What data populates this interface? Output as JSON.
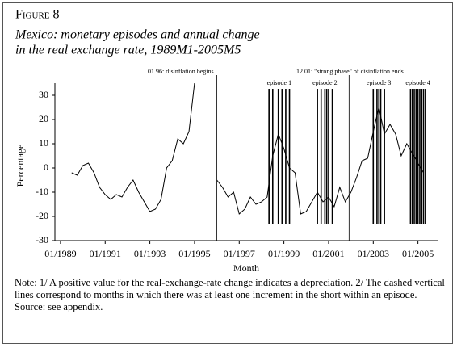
{
  "chart_data": {
    "type": "line",
    "title": "Figure 8",
    "subtitle": [
      "Mexico: monetary episodes and annual change",
      "in the real exchange rate, 1989M1-2005M5"
    ],
    "ylabel": "Percentage",
    "xlabel": "Month",
    "x": [
      "07/1989",
      "10/1989",
      "01/1990",
      "04/1990",
      "07/1990",
      "10/1990",
      "01/1991",
      "04/1991",
      "07/1991",
      "10/1991",
      "01/1992",
      "04/1992",
      "07/1992",
      "10/1992",
      "01/1993",
      "04/1993",
      "07/1993",
      "10/1993",
      "01/1994",
      "04/1994",
      "07/1994",
      "10/1994",
      "01/1995",
      "04/1995",
      "07/1995",
      "10/1995",
      "01/1996",
      "04/1996",
      "07/1996",
      "10/1996",
      "01/1997",
      "04/1997",
      "07/1997",
      "10/1997",
      "01/1998",
      "04/1998",
      "07/1998",
      "10/1998",
      "01/1999",
      "04/1999",
      "07/1999",
      "10/1999",
      "01/2000",
      "04/2000",
      "07/2000",
      "10/2000",
      "01/2001",
      "04/2001",
      "07/2001",
      "10/2001",
      "01/2002",
      "04/2002",
      "07/2002",
      "10/2002",
      "01/2003",
      "04/2003",
      "07/2003",
      "10/2003",
      "01/2004",
      "04/2004",
      "07/2004",
      "10/2004",
      "01/2005",
      "04/2005"
    ],
    "series": [
      {
        "name": "Annual change in the real exchange rate",
        "color": "#000000",
        "values": [
          -2,
          -3,
          1,
          2,
          -2,
          -8,
          -11,
          -13,
          -11,
          -12,
          -8,
          -5,
          -10,
          -14,
          -18,
          -17,
          -13,
          0,
          3,
          12,
          10,
          15,
          35,
          null,
          null,
          null,
          -5,
          -8,
          -12,
          -10,
          -19,
          -17,
          -12,
          -15,
          -14,
          -12,
          5,
          14,
          8,
          0,
          -2,
          -19,
          -18,
          -14,
          -10,
          -14,
          -12,
          -16,
          -8,
          -14,
          -10,
          -4,
          3,
          4,
          15,
          25,
          14,
          18,
          14,
          5,
          10,
          6,
          2,
          -2
        ]
      }
    ],
    "xlim": [
      "10/1988",
      "12/2005"
    ],
    "xticks": [
      "01/1989",
      "01/1991",
      "01/1993",
      "01/1995",
      "01/1997",
      "01/1999",
      "01/2001",
      "01/2003",
      "01/2005"
    ],
    "ylim": [
      -30,
      35
    ],
    "yticks": [
      -30,
      -20,
      -10,
      0,
      10,
      20,
      30
    ],
    "annotations": [
      {
        "x": "01/1996",
        "text": "01.96: disinflation begins"
      },
      {
        "x": "12/2001",
        "text": "12.01: \"strong phase\" of disinflation ends"
      }
    ],
    "episodes": [
      {
        "label": "episode 1",
        "months": [
          "05/1998",
          "07/1998",
          "10/1998",
          "12/1998",
          "02/1999",
          "04/1999"
        ]
      },
      {
        "label": "episode 2",
        "months": [
          "07/2000",
          "09/2000",
          "11/2000",
          "12/2000",
          "01/2001",
          "03/2001"
        ]
      },
      {
        "label": "episode 3",
        "months": [
          "01/2003",
          "03/2003",
          "04/2003",
          "05/2003",
          "07/2003"
        ]
      },
      {
        "label": "episode 4",
        "months": [
          "09/2004",
          "10/2004",
          "11/2004",
          "12/2004",
          "01/2005",
          "02/2005",
          "03/2005",
          "04/2005",
          "05/2005"
        ]
      }
    ],
    "episode_low": -23,
    "note": "Note: 1/ A positive value for the real-exchange-rate change indicates a depreciation. 2/ The dashed vertical lines correspond to months in which there was at least one increment in the short within an episode.",
    "source": "Source: see appendix."
  }
}
